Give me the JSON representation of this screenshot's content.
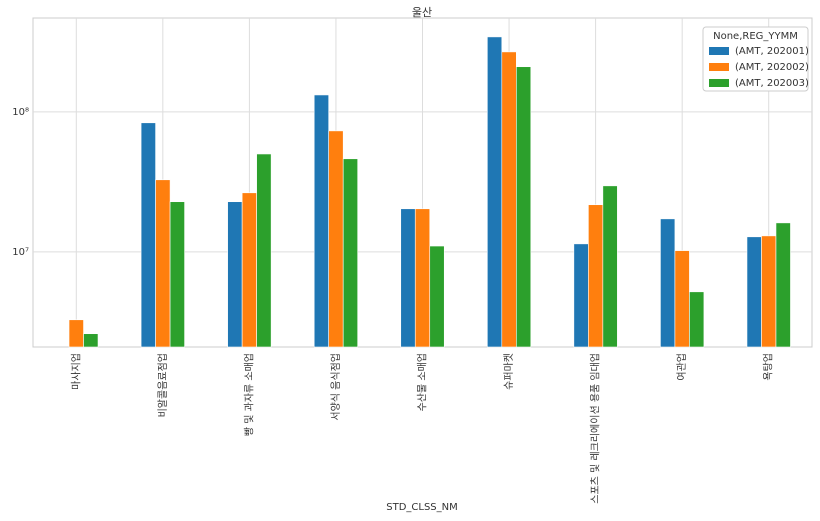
{
  "chart_data": {
    "type": "bar",
    "title": "울산",
    "x_label": "STD_CLSS_NM",
    "legend_title": "None,REG_YYMM",
    "categories": [
      "마사지업",
      "비알콜음료점업",
      "빵 및 과자류 소매업",
      "서양식 음식점업",
      "수산물 소매업",
      "슈퍼마켓",
      "스포츠 및 레크리에이션 용품 임대업",
      "여관업",
      "욕탕업"
    ],
    "series": [
      {
        "name": "(AMT, 202001)",
        "color": "#1f77b4",
        "values": [
          null,
          83500000,
          22800000,
          132000000,
          20300000,
          343000000,
          11400000,
          17200000,
          12800000
        ]
      },
      {
        "name": "(AMT, 202002)",
        "color": "#ff7f0e",
        "values": [
          3270000,
          32700000,
          26400000,
          73100000,
          20300000,
          268000000,
          21700000,
          10200000,
          13000000
        ]
      },
      {
        "name": "(AMT, 202003)",
        "color": "#2ca02c",
        "values": [
          2600000,
          22800000,
          50000000,
          46200000,
          11000000,
          210000000,
          29600000,
          5180000,
          16100000
        ]
      }
    ],
    "log_scale": true,
    "ylim": [
      2090000,
      468000000
    ],
    "yticks": [
      {
        "value": 10000000,
        "label": "10⁷"
      },
      {
        "value": 100000000,
        "label": "10⁸"
      }
    ],
    "grid": true,
    "legend": "upper right"
  }
}
